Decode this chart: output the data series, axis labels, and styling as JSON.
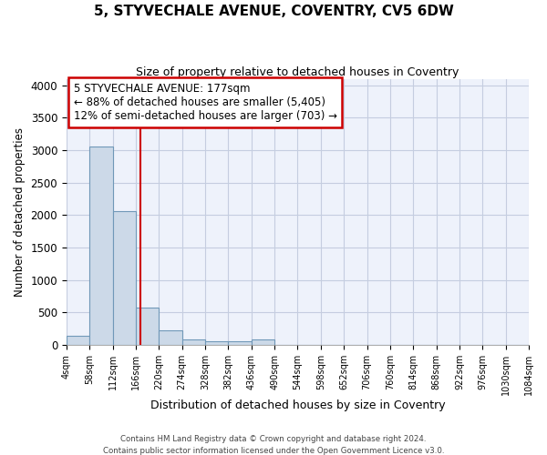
{
  "title": "5, STYVECHALE AVENUE, COVENTRY, CV5 6DW",
  "subtitle": "Size of property relative to detached houses in Coventry",
  "xlabel": "Distribution of detached houses by size in Coventry",
  "ylabel": "Number of detached properties",
  "footer_line1": "Contains HM Land Registry data © Crown copyright and database right 2024.",
  "footer_line2": "Contains public sector information licensed under the Open Government Licence v3.0.",
  "property_label": "5 STYVECHALE AVENUE: 177sqm",
  "annotation_line1": "← 88% of detached houses are smaller (5,405)",
  "annotation_line2": "12% of semi-detached houses are larger (703) →",
  "bar_edges": [
    4,
    58,
    112,
    166,
    220,
    274,
    328,
    382,
    436,
    490,
    544,
    598,
    652,
    706,
    760,
    814,
    868,
    922,
    976,
    1030,
    1084
  ],
  "bar_heights": [
    140,
    3060,
    2060,
    570,
    220,
    80,
    55,
    50,
    80,
    0,
    0,
    0,
    0,
    0,
    0,
    0,
    0,
    0,
    0,
    0
  ],
  "bar_color": "#ccd9e8",
  "bar_edge_color": "#7098b8",
  "vline_color": "#cc0000",
  "vline_x": 177,
  "annotation_box_color": "#cc0000",
  "ylim": [
    0,
    4100
  ],
  "yticks": [
    0,
    500,
    1000,
    1500,
    2000,
    2500,
    3000,
    3500,
    4000
  ],
  "bg_color": "#eef2fb",
  "grid_color": "#c5cde0"
}
